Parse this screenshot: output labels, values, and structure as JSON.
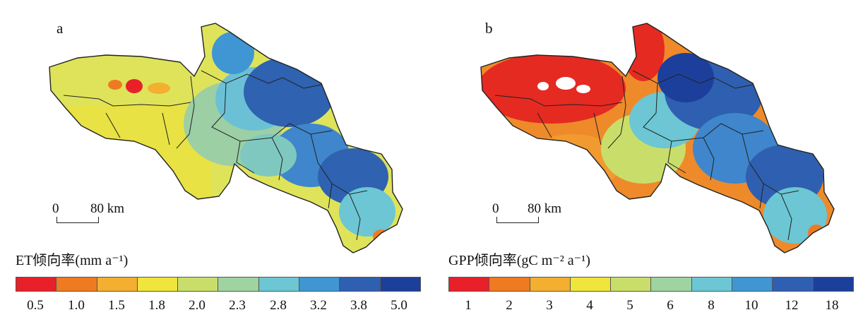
{
  "panels": [
    {
      "label": "a",
      "scale": {
        "zero": "0",
        "distance": "80 km"
      },
      "legend_title": "ET倾向率(mm a⁻¹)",
      "ticks": [
        "0.5",
        "1.0",
        "1.5",
        "1.8",
        "2.0",
        "2.3",
        "2.8",
        "3.2",
        "3.8",
        "5.0"
      ]
    },
    {
      "label": "b",
      "scale": {
        "zero": "0",
        "distance": "80 km"
      },
      "legend_title": "GPP倾向率(gC m⁻² a⁻¹)",
      "ticks": [
        "1",
        "2",
        "3",
        "4",
        "5",
        "6",
        "8",
        "10",
        "12",
        "18"
      ]
    }
  ],
  "legend_colors": [
    "#e8202a",
    "#ee7a22",
    "#f4ae30",
    "#f0e53c",
    "#c9de6a",
    "#9fd3a0",
    "#6cc6d3",
    "#3f96d2",
    "#2f5fb0",
    "#1d3f9c"
  ]
}
